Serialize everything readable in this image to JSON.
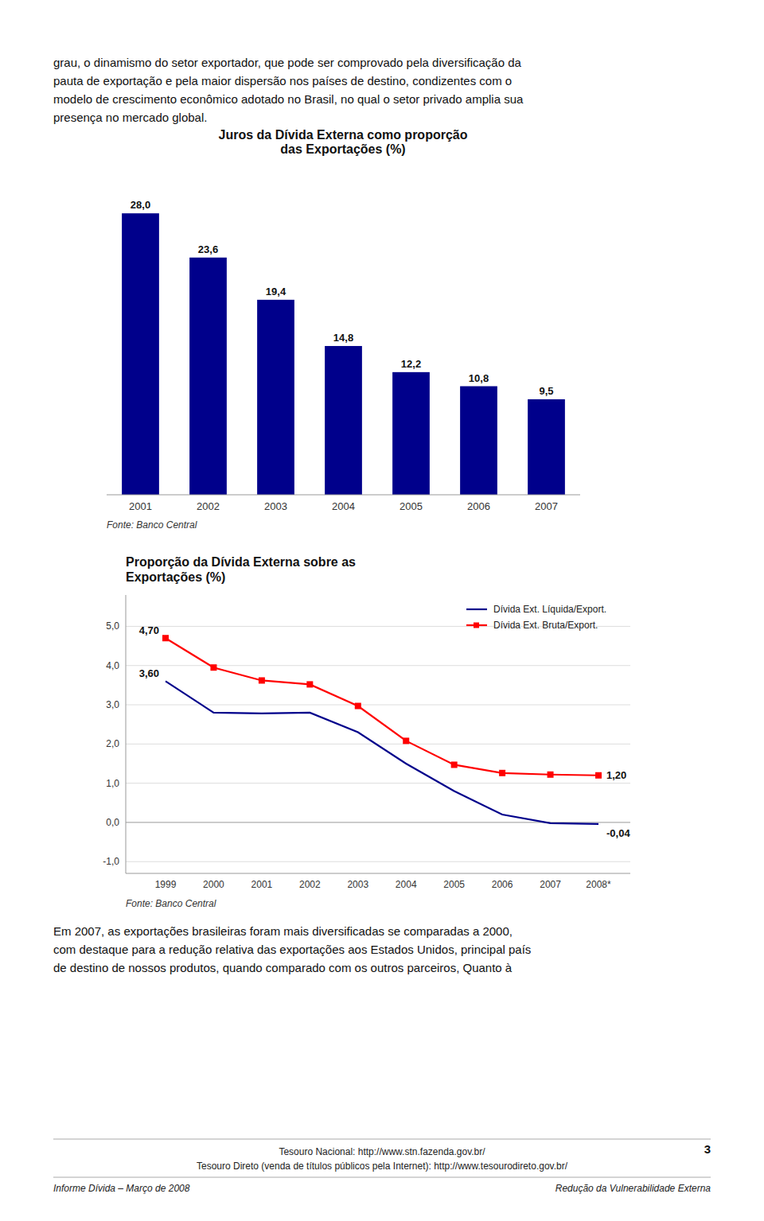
{
  "chart_data": [
    {
      "type": "bar",
      "title": "Juros da Dívida Externa como proporção\ndas Exportações (%)",
      "categories": [
        "2001",
        "2002",
        "2003",
        "2004",
        "2005",
        "2006",
        "2007"
      ],
      "values": [
        28.0,
        23.6,
        19.4,
        14.8,
        12.2,
        10.8,
        9.5
      ],
      "value_labels": [
        "28,0",
        "23,6",
        "19,4",
        "14,8",
        "12,2",
        "10,8",
        "9,5"
      ],
      "data_labels": true,
      "color": "#00008B",
      "ylim": [
        0,
        33
      ],
      "tick_labels": "x",
      "source": "Fonte: Banco Central"
    },
    {
      "type": "line",
      "title": "Proporção da Dívida Externa sobre as\nExportações (%)",
      "categories": [
        "1999",
        "2000",
        "2001",
        "2002",
        "2003",
        "2004",
        "2005",
        "2006",
        "2007",
        "2008*"
      ],
      "series": [
        {
          "name": "Dívida Ext. Líquida/Export.",
          "color": "#00008B",
          "values": [
            3.6,
            2.8,
            2.78,
            2.8,
            2.3,
            1.5,
            0.8,
            0.2,
            -0.02,
            -0.04
          ],
          "value_labels": [
            "3,60",
            null,
            null,
            null,
            null,
            null,
            null,
            null,
            null,
            "-0,04"
          ]
        },
        {
          "name": "Dívida Ext. Bruta/Export.",
          "color": "#FF0000",
          "marker": "square",
          "values": [
            4.7,
            3.95,
            3.62,
            3.52,
            2.97,
            2.08,
            1.47,
            1.26,
            1.22,
            1.2
          ],
          "value_labels": [
            "4,70",
            null,
            null,
            null,
            null,
            null,
            null,
            null,
            null,
            "1,20"
          ]
        }
      ],
      "data_labels": true,
      "ylim": [
        -1.3,
        5.8
      ],
      "yticks": [
        {
          "value": -1,
          "label": "-1,0"
        },
        {
          "value": 0,
          "label": "0,0"
        },
        {
          "value": 1,
          "label": "1,0"
        },
        {
          "value": 2,
          "label": "2,0"
        },
        {
          "value": 3,
          "label": "3,0"
        },
        {
          "value": 4,
          "label": "4,0"
        },
        {
          "value": 5,
          "label": "5,0"
        }
      ],
      "grid": true,
      "legend": "upper right",
      "source": "Fonte: Banco Central"
    }
  ],
  "text_top": "grau, o dinamismo do setor exportador, que pode ser comprovado pela diversificação da\npauta de exportação e pela maior dispersão nos países de destino, condizentes com o\nmodelo de crescimento econômico adotado no Brasil, no qual o setor privado amplia sua\npresença no mercado global.",
  "text_bottom": "Em 2007, as exportações brasileiras foram mais diversificadas se comparadas a 2000,\ncom destaque para a redução relativa das exportações aos Estados Unidos, principal país\nde destino de nossos produtos, quando comparado com os outros parceiros, Quanto à",
  "footer_left": "Informe Dívida – Março de 2008",
  "footer_right": "Redução da Vulnerabilidade Externa",
  "footer_center1": "Tesouro Nacional: http://www.stn.fazenda.gov.br/",
  "footer_center2": "Tesouro Direto (venda de títulos públicos pela Internet): http://www.tesourodireto.gov.br/",
  "page_number": "3"
}
